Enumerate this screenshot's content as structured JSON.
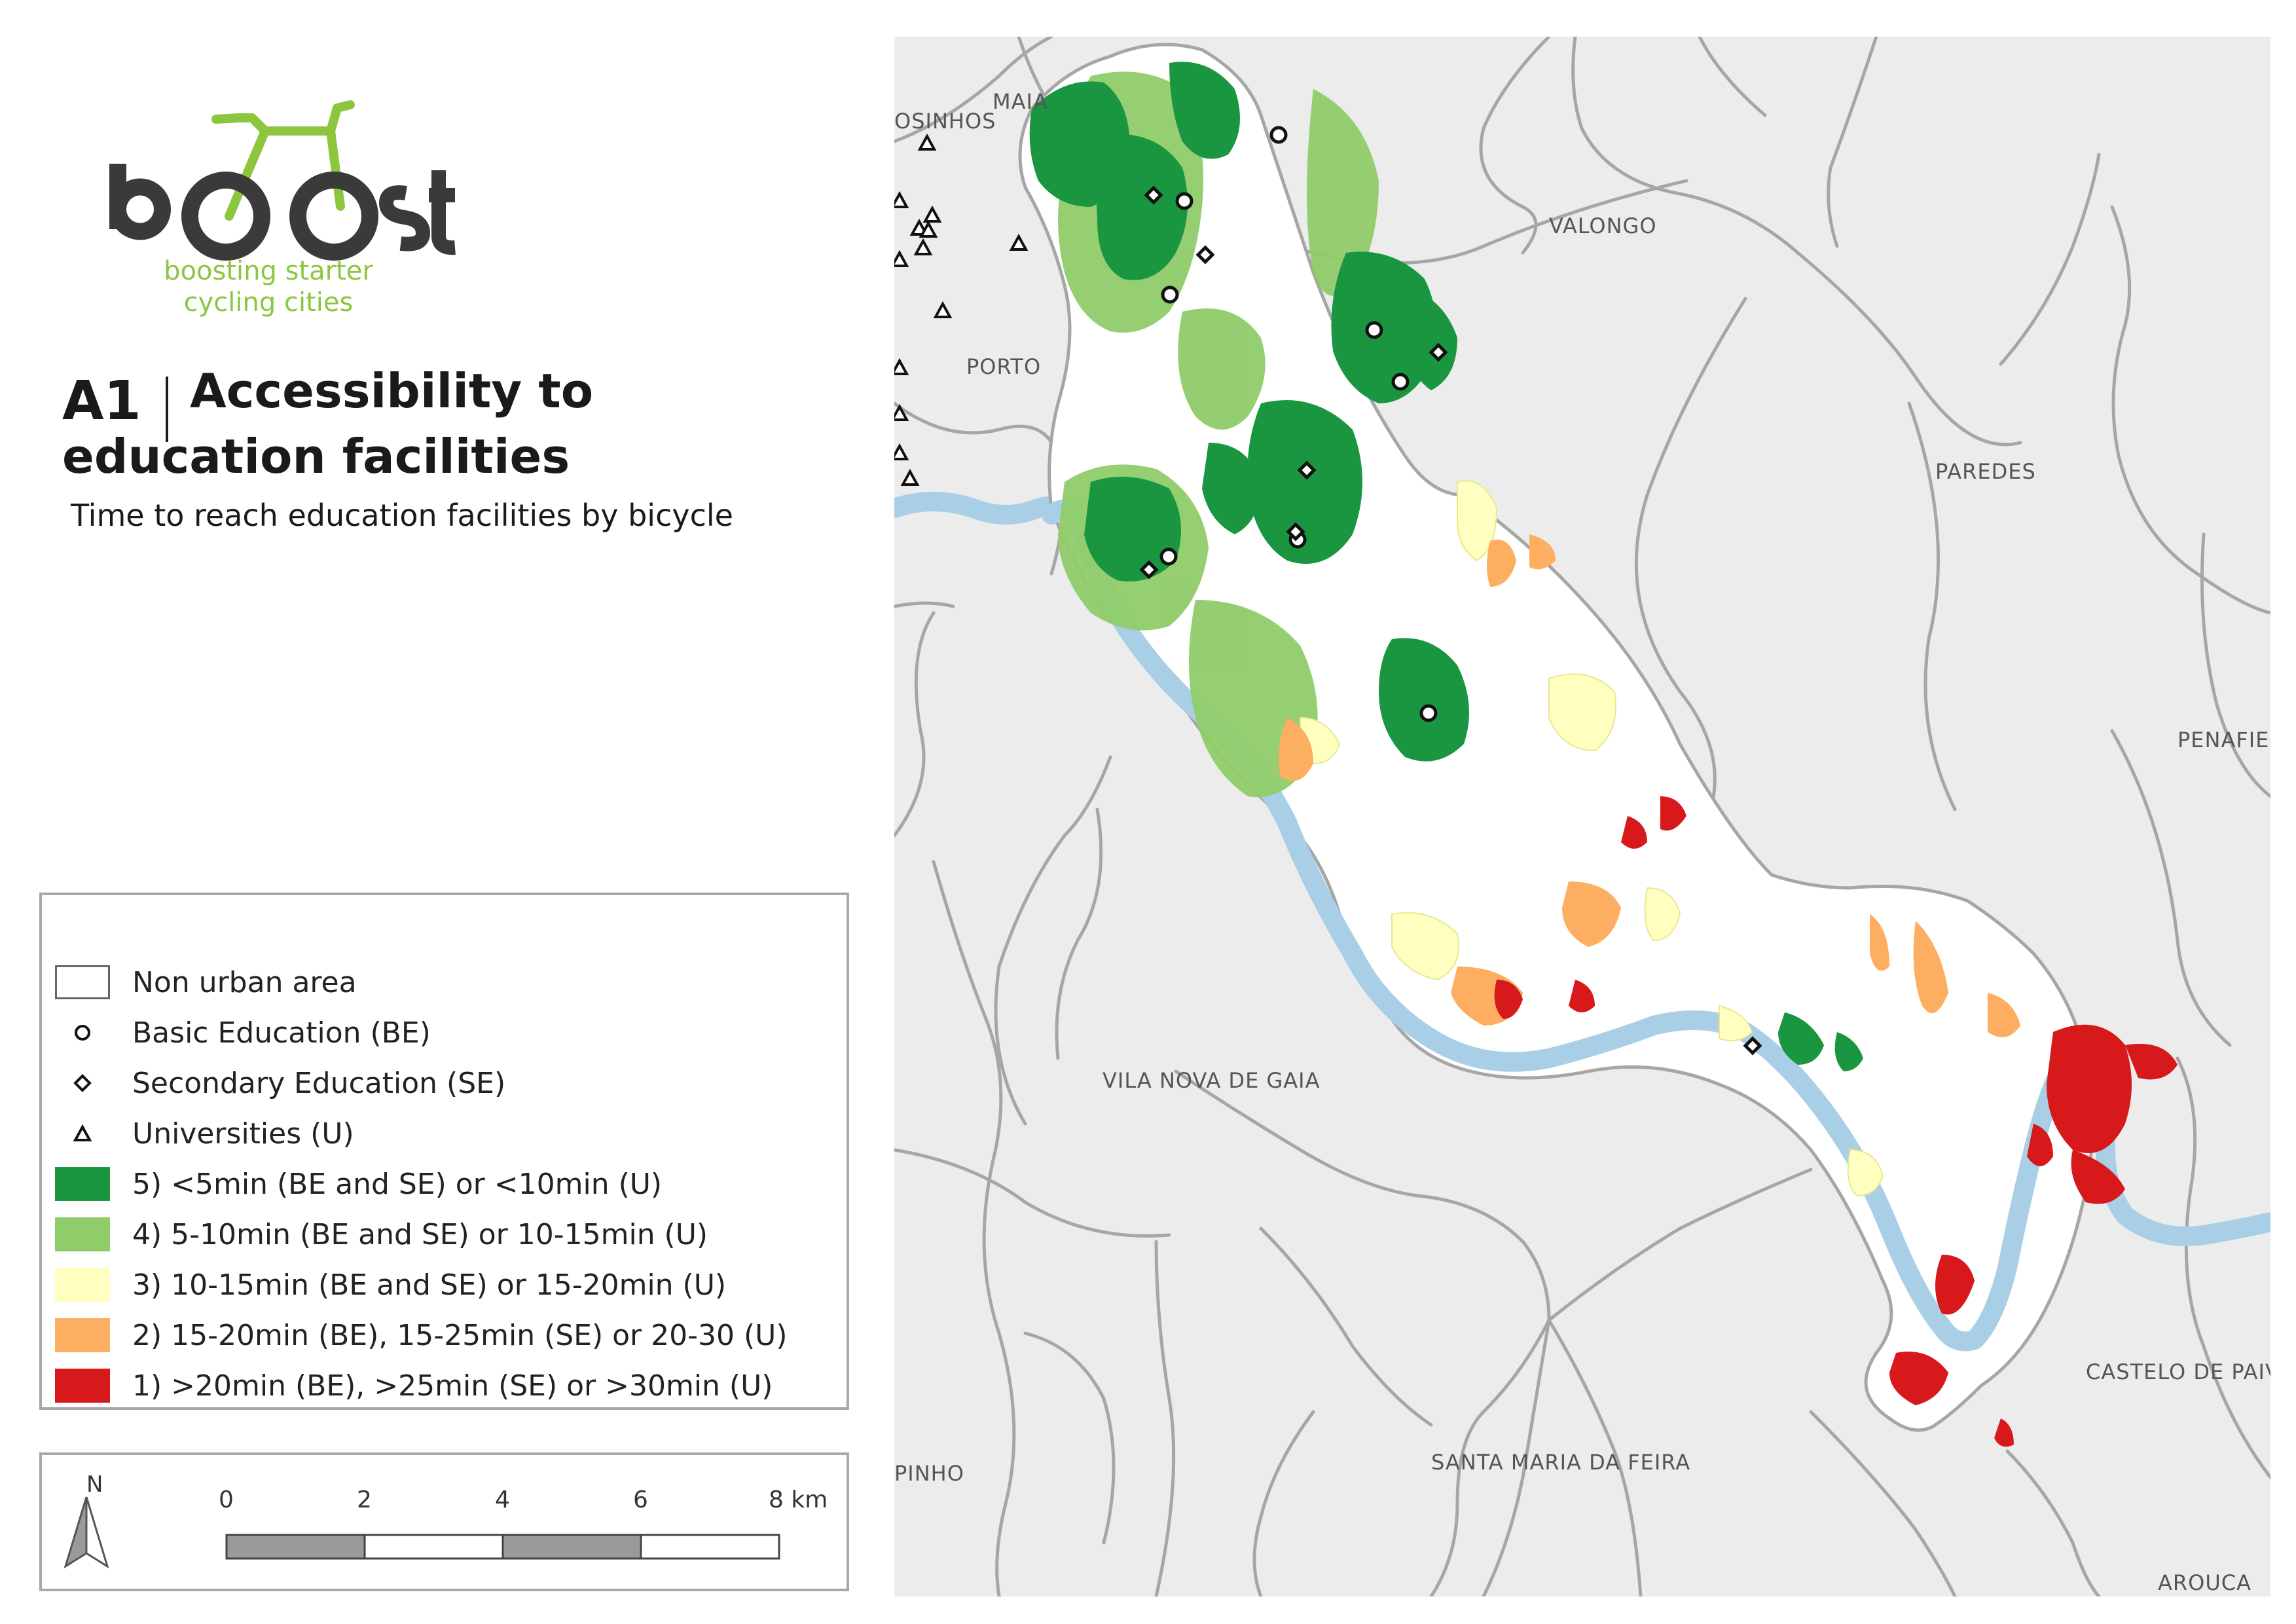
{
  "logo": {
    "wordmark": "boost",
    "tagline_line1": "boosting starter",
    "tagline_line2": "cycling cities",
    "green": "#8cc63f",
    "dark": "#3a3a3a"
  },
  "title": {
    "code": "A1",
    "line1": "Accessibility to",
    "line2": "education facilities",
    "subtitle": "Time to reach education facilities by bicycle"
  },
  "legend": {
    "items": [
      {
        "symbol": "box-empty",
        "label": "Non urban area"
      },
      {
        "symbol": "circle",
        "label": "Basic Education (BE)"
      },
      {
        "symbol": "diamond",
        "label": "Secondary Education (SE)"
      },
      {
        "symbol": "triangle",
        "label": "Universities (U)"
      },
      {
        "symbol": "box",
        "color": "#1a9641",
        "label": "5)  <5min (BE and SE) or <10min (U)"
      },
      {
        "symbol": "box",
        "color": "#8fcc6a",
        "label": "4)  5-10min (BE and SE) or 10-15min (U)"
      },
      {
        "symbol": "box",
        "color": "#ffffc0",
        "label": "3)  10-15min (BE and SE) or 15-20min (U)"
      },
      {
        "symbol": "box",
        "color": "#fdae61",
        "label": "2)  15-20min (BE), 15-25min (SE) or 20-30 (U)"
      },
      {
        "symbol": "box",
        "color": "#d7191c",
        "label": "1)  >20min (BE), >25min (SE) or >30min (U)"
      }
    ]
  },
  "scale": {
    "north": "N",
    "ticks": [
      "0",
      "2",
      "4",
      "6",
      "8 km"
    ]
  },
  "map": {
    "places": [
      "MAIA",
      "OSINHOS",
      "VALONGO",
      "PORTO",
      "PAREDES",
      "PENAFIEL",
      "VILA NOVA DE GAIA",
      "CASTELO DE PAIV",
      "PINHO",
      "SANTA MARIA DA FEIRA",
      "AROUCA"
    ],
    "colors": {
      "background": "#ececec",
      "road": "#a6a6a6",
      "river": "#a9cfe6",
      "study_area": "#ffffff",
      "class5": "#1a9641",
      "class4": "#8fcc6a",
      "class3": "#ffffc0",
      "class2": "#fdae61",
      "class1": "#d7191c"
    }
  }
}
